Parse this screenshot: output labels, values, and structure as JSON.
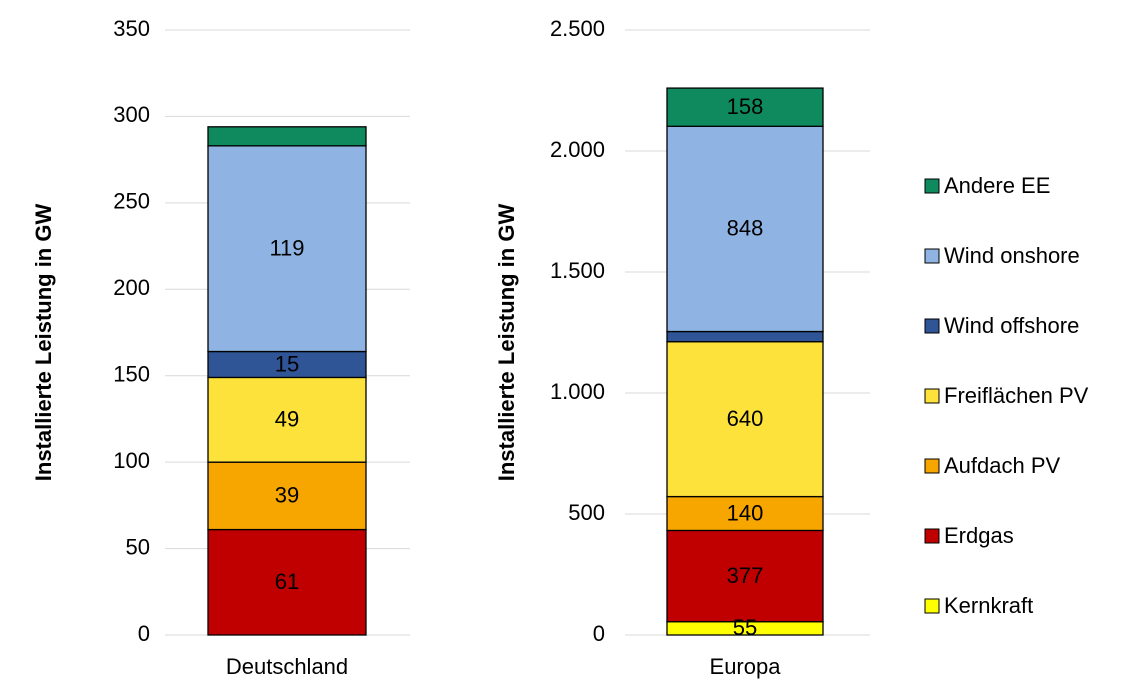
{
  "chart_data": [
    {
      "type": "bar",
      "stacked": true,
      "ylabel": "Installierte Leistung in GW",
      "categories": [
        "Deutschland"
      ],
      "ylim": [
        0,
        350
      ],
      "yticks": [
        0,
        50,
        100,
        150,
        200,
        250,
        300,
        350
      ],
      "grid": true,
      "series": [
        {
          "color": "#ffff00",
          "values": [
            0
          ],
          "value_labels": [
            null
          ]
        },
        {
          "color": "#c00000",
          "values": [
            61
          ],
          "value_labels": [
            "61"
          ]
        },
        {
          "color": "#f7a600",
          "values": [
            39
          ],
          "value_labels": [
            "39"
          ]
        },
        {
          "color": "#fde23c",
          "values": [
            49
          ],
          "value_labels": [
            "49"
          ]
        },
        {
          "color": "#2f5597",
          "values": [
            15
          ],
          "value_labels": [
            "15"
          ]
        },
        {
          "color": "#8fb4e3",
          "values": [
            119
          ],
          "value_labels": [
            "119"
          ]
        },
        {
          "color": "#0f8a5f",
          "values": [
            11
          ],
          "value_labels": [
            null
          ]
        }
      ]
    },
    {
      "type": "bar",
      "stacked": true,
      "ylabel": "Installierte Leistung in GW",
      "categories": [
        "Europa"
      ],
      "ylim": [
        0,
        2500
      ],
      "yticks": [
        0,
        500,
        {
          "value": 1000,
          "label": "1.000"
        },
        {
          "value": 1500,
          "label": "1.500"
        },
        {
          "value": 2000,
          "label": "2.000"
        },
        {
          "value": 2500,
          "label": "2.500"
        }
      ],
      "grid": true,
      "legend": "right",
      "series": [
        {
          "name": "Kernkraft",
          "color": "#ffff00",
          "values": [
            55
          ],
          "value_labels": [
            "55"
          ]
        },
        {
          "name": "Erdgas",
          "color": "#c00000",
          "values": [
            377
          ],
          "value_labels": [
            "377"
          ]
        },
        {
          "name": "Aufdach PV",
          "color": "#f7a600",
          "values": [
            140
          ],
          "value_labels": [
            "140"
          ]
        },
        {
          "name": "Freiflächen PV",
          "color": "#fde23c",
          "values": [
            640
          ],
          "value_labels": [
            "640"
          ]
        },
        {
          "name": "Wind offshore",
          "color": "#2f5597",
          "values": [
            42
          ],
          "value_labels": [
            null
          ]
        },
        {
          "name": "Wind onshore",
          "color": "#8fb4e3",
          "values": [
            848
          ],
          "value_labels": [
            "848"
          ]
        },
        {
          "name": "Andere EE",
          "color": "#0f8a5f",
          "values": [
            158
          ],
          "value_labels": [
            "158"
          ]
        }
      ]
    }
  ]
}
